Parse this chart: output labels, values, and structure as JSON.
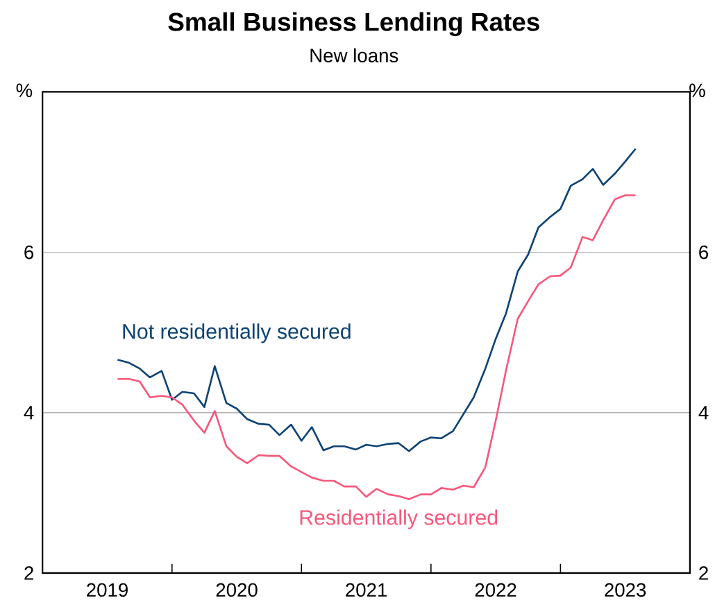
{
  "chart_data": {
    "type": "line",
    "title": "Small Business Lending Rates",
    "subtitle": "New loans",
    "ylabel": "%",
    "y2label": "%",
    "x": [
      "2019-08",
      "2019-09",
      "2019-10",
      "2019-11",
      "2019-12",
      "2020-01",
      "2020-02",
      "2020-03",
      "2020-04",
      "2020-05",
      "2020-06",
      "2020-07",
      "2020-08",
      "2020-09",
      "2020-10",
      "2020-11",
      "2020-12",
      "2021-01",
      "2021-02",
      "2021-03",
      "2021-04",
      "2021-05",
      "2021-06",
      "2021-07",
      "2021-08",
      "2021-09",
      "2021-10",
      "2021-11",
      "2021-12",
      "2022-01",
      "2022-02",
      "2022-03",
      "2022-04",
      "2022-05",
      "2022-06",
      "2022-07",
      "2022-08",
      "2022-09",
      "2022-10",
      "2022-11",
      "2022-12",
      "2023-01",
      "2023-02",
      "2023-03",
      "2023-04",
      "2023-05",
      "2023-06",
      "2023-07",
      "2023-08"
    ],
    "series": [
      {
        "name": "Not residentially secured",
        "color": "#0e4374",
        "values": [
          4.66,
          4.62,
          4.55,
          4.44,
          4.52,
          4.16,
          4.26,
          4.24,
          4.07,
          4.58,
          4.12,
          4.05,
          3.92,
          3.86,
          3.85,
          3.72,
          3.85,
          3.65,
          3.82,
          3.53,
          3.58,
          3.58,
          3.54,
          3.6,
          3.58,
          3.61,
          3.62,
          3.52,
          3.64,
          3.69,
          3.68,
          3.77,
          3.98,
          4.19,
          4.55,
          4.92,
          5.24,
          5.76,
          5.97,
          6.31,
          6.44,
          6.54,
          6.83,
          6.91,
          7.04,
          6.84,
          6.98,
          7.13,
          7.29
        ]
      },
      {
        "name": "Residentially secured",
        "color": "#f8577a",
        "values": [
          4.42,
          4.42,
          4.39,
          4.19,
          4.21,
          4.19,
          4.1,
          3.9,
          3.75,
          4.02,
          3.58,
          3.45,
          3.37,
          3.47,
          3.46,
          3.46,
          3.33,
          3.26,
          3.19,
          3.15,
          3.15,
          3.08,
          3.08,
          2.95,
          3.05,
          2.98,
          2.96,
          2.92,
          2.98,
          2.98,
          3.06,
          3.04,
          3.09,
          3.07,
          3.32,
          3.9,
          4.53,
          5.17,
          5.39,
          5.6,
          5.7,
          5.71,
          5.81,
          6.19,
          6.15,
          6.4,
          6.66,
          6.71,
          6.71
        ]
      }
    ],
    "xlim": [
      "2019-01",
      "2024-01"
    ],
    "xticks": [
      {
        "value": "2019-07",
        "label": "2019"
      },
      {
        "value": "2020-01",
        "label": null
      },
      {
        "value": "2020-07",
        "label": "2020"
      },
      {
        "value": "2021-01",
        "label": null
      },
      {
        "value": "2021-07",
        "label": "2021"
      },
      {
        "value": "2022-01",
        "label": null
      },
      {
        "value": "2022-07",
        "label": "2022"
      },
      {
        "value": "2023-01",
        "label": null
      },
      {
        "value": "2023-07",
        "label": "2023"
      }
    ],
    "ylim": [
      2,
      8
    ],
    "yticks": [
      {
        "value": 2,
        "label": "2"
      },
      {
        "value": 4,
        "label": "4"
      },
      {
        "value": 6,
        "label": "6"
      },
      {
        "value": 8,
        "label": null
      }
    ],
    "y2lim": [
      2,
      8
    ],
    "y2ticks": [
      {
        "value": 2,
        "label": "2"
      },
      {
        "value": 4,
        "label": "4"
      },
      {
        "value": 6,
        "label": "6"
      },
      {
        "value": 8,
        "label": null
      }
    ],
    "grid": "y",
    "line_style": "solid",
    "marker": "none"
  }
}
